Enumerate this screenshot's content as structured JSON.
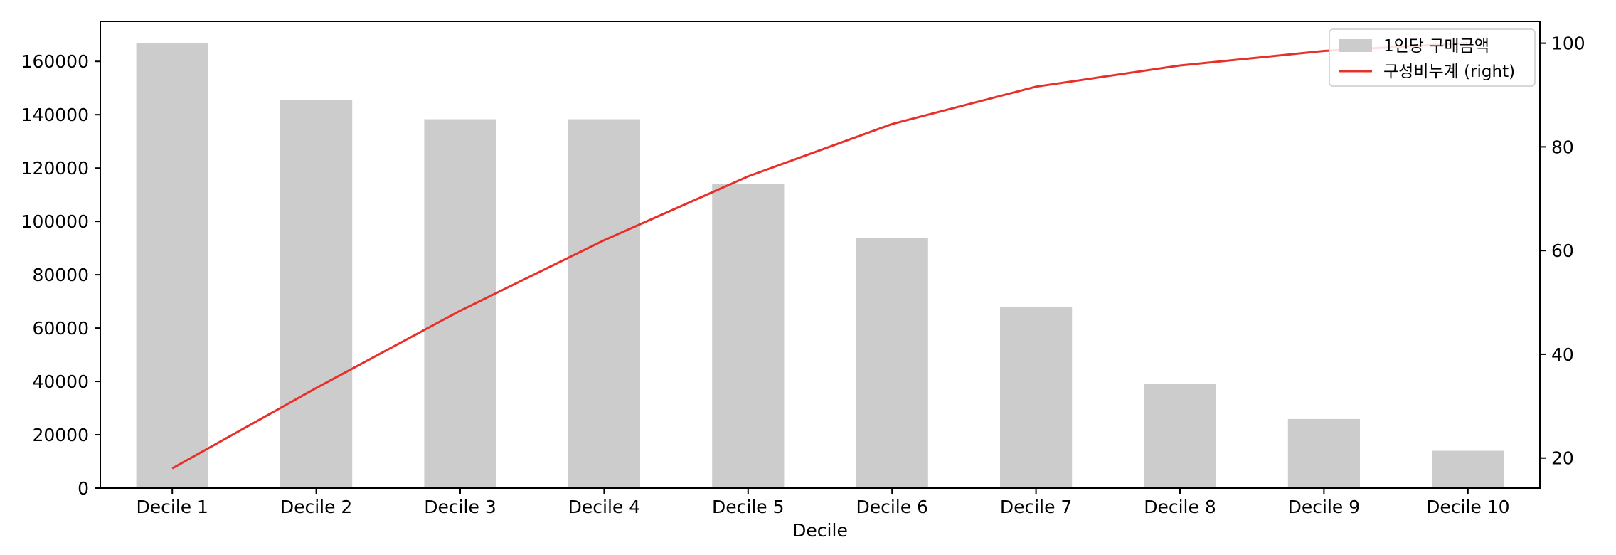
{
  "chart_data": {
    "type": "bar",
    "title": "",
    "xlabel": "Decile",
    "ylabel": "",
    "y2label": "",
    "categories": [
      "Decile 1",
      "Decile 2",
      "Decile 3",
      "Decile 4",
      "Decile 5",
      "Decile 6",
      "Decile 7",
      "Decile 8",
      "Decile 9",
      "Decile 10"
    ],
    "ylim": [
      0,
      175000
    ],
    "yticks": [
      0,
      20000,
      40000,
      60000,
      80000,
      100000,
      120000,
      140000,
      160000
    ],
    "y2lim": [
      14.2,
      104.2
    ],
    "y2ticks": [
      20,
      40,
      60,
      80,
      100
    ],
    "grid": false,
    "legend_position": "top-right",
    "series": [
      {
        "name": "1인당 구매금액",
        "kind": "bar",
        "axis": "left",
        "color": "#cccccc",
        "values": [
          167000,
          145500,
          138300,
          138300,
          114000,
          93700,
          67900,
          39100,
          25900,
          14000
        ]
      },
      {
        "name": "구성비누계 (right)",
        "kind": "line",
        "axis": "right",
        "color": "#e8302a",
        "values": [
          18.0,
          33.5,
          48.4,
          62.0,
          74.3,
          84.4,
          91.6,
          95.7,
          98.5,
          100.0
        ]
      }
    ]
  }
}
